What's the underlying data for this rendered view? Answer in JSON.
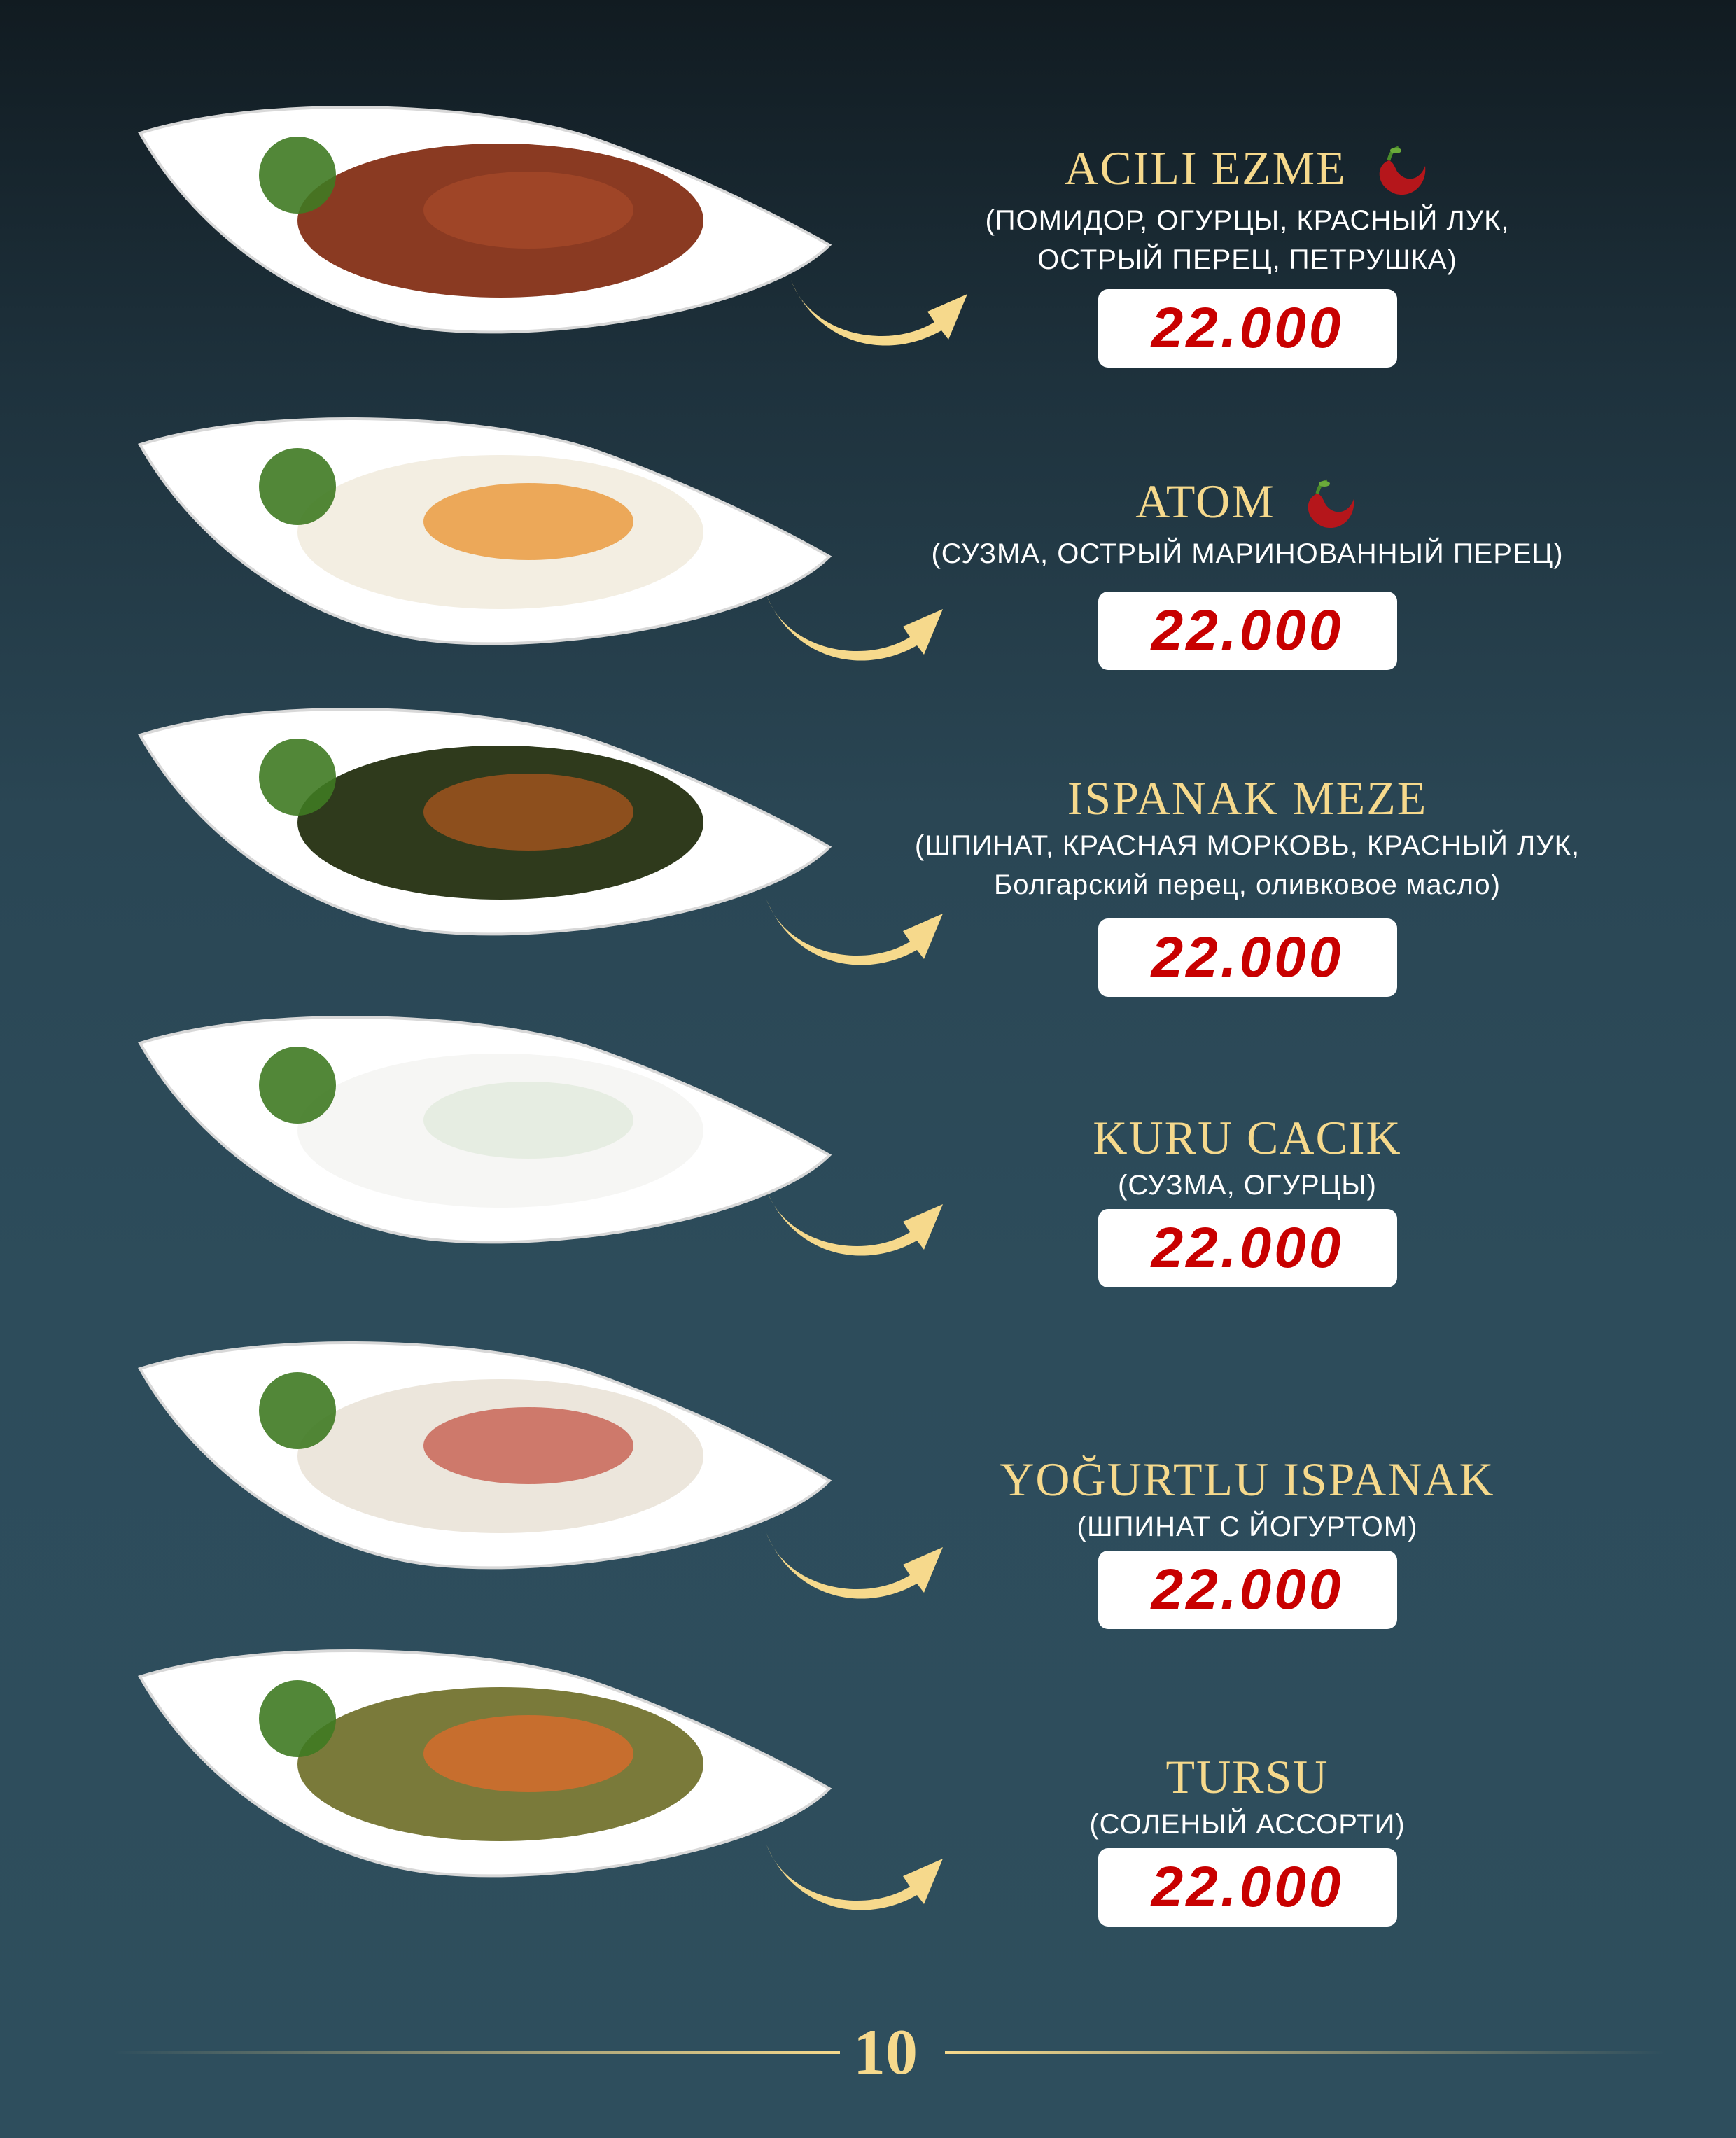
{
  "colors": {
    "title": "#f6d98c",
    "price": "#c80000",
    "background": "#2d4c5b"
  },
  "items": [
    {
      "name": "ACILI EZME",
      "spicy": true,
      "desc_lines": [
        "(ПОМИДОР, ОГУРЦЫ, КРАСНЫЙ ЛУК,",
        "ОСТРЫЙ ПЕРЕЦ, ПЕТРУШКА)"
      ],
      "price": "22.000"
    },
    {
      "name": "ATOM",
      "spicy": true,
      "desc_lines": [
        "(СУЗМА, ОСТРЫЙ МАРИНОВАННЫЙ ПЕРЕЦ)"
      ],
      "price": "22.000"
    },
    {
      "name": "ISPANAK MEZE",
      "spicy": false,
      "desc_lines": [
        "(ШПИНАТ, КРАСНАЯ МОРКОВЬ, КРАСНЫЙ ЛУК,",
        "Болгарский перец, оливковое масло)"
      ],
      "price": "22.000"
    },
    {
      "name": "KURU CACIK",
      "spicy": false,
      "desc_lines": [
        "(СУЗМА, ОГУРЦЫ)"
      ],
      "price": "22.000"
    },
    {
      "name": "YOĞURTLU ISPANAK",
      "spicy": false,
      "desc_lines": [
        "(ШПИНАТ С ЙОГУРТОМ)"
      ],
      "price": "22.000"
    },
    {
      "name": "TURSU",
      "spicy": false,
      "desc_lines": [
        "(СОЛЕНЫЙ АССОРТИ)"
      ],
      "price": "22.000"
    }
  ],
  "page_number": "10"
}
